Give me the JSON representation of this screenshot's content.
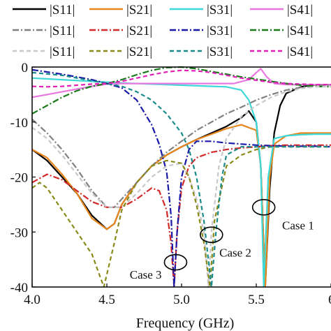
{
  "chart_data": {
    "type": "line",
    "title": "",
    "xlabel": "Frequency (GHz)",
    "ylabel": "",
    "xlim": [
      4.0,
      6.0
    ],
    "ylim": [
      -40,
      0
    ],
    "x_ticks": [
      4.0,
      4.5,
      5.0,
      5.5,
      6.0
    ],
    "x_tick_labels": [
      "4.0",
      "4.5",
      "5.0",
      "5.5",
      "6"
    ],
    "y_ticks": [
      0,
      -10,
      -20,
      -30,
      -40
    ],
    "y_tick_labels": [
      "0",
      "-10",
      "-20",
      "-30",
      "-40"
    ],
    "grid": false,
    "legend_position": "top",
    "legend_columns": 4,
    "annotations": [
      {
        "label": "Case 1",
        "ellipse_center": [
          5.55,
          -25.5
        ],
        "label_at": [
          5.78,
          -29.5
        ]
      },
      {
        "label": "Case 2",
        "ellipse_center": [
          5.2,
          -30.5
        ],
        "label_at": [
          5.36,
          -34.5
        ]
      },
      {
        "label": "Case 3",
        "ellipse_center": [
          4.96,
          -35.5
        ],
        "label_at": [
          4.76,
          -38.5
        ]
      }
    ],
    "series": [
      {
        "name": "|S11|",
        "color": "#000000",
        "dash": "solid",
        "points": [
          [
            4.0,
            -15
          ],
          [
            4.1,
            -17
          ],
          [
            4.2,
            -20
          ],
          [
            4.3,
            -23
          ],
          [
            4.4,
            -27
          ],
          [
            4.5,
            -29.5
          ],
          [
            4.55,
            -28.5
          ],
          [
            4.6,
            -25
          ],
          [
            4.7,
            -21
          ],
          [
            4.8,
            -18
          ],
          [
            4.9,
            -16
          ],
          [
            5.0,
            -14.5
          ],
          [
            5.1,
            -13.2
          ],
          [
            5.2,
            -12
          ],
          [
            5.3,
            -10.8
          ],
          [
            5.4,
            -9.2
          ],
          [
            5.45,
            -8
          ],
          [
            5.5,
            -10
          ],
          [
            5.53,
            -18
          ],
          [
            5.56,
            -40
          ],
          [
            5.59,
            -22
          ],
          [
            5.62,
            -12
          ],
          [
            5.66,
            -7
          ],
          [
            5.7,
            -4.8
          ],
          [
            5.8,
            -3.6
          ],
          [
            5.9,
            -3.2
          ],
          [
            6.0,
            -3.2
          ]
        ]
      },
      {
        "name": "|S21|",
        "color": "#e8861c",
        "dash": "solid",
        "points": [
          [
            4.0,
            -15
          ],
          [
            4.1,
            -16.5
          ],
          [
            4.2,
            -19.5
          ],
          [
            4.3,
            -23
          ],
          [
            4.4,
            -27.5
          ],
          [
            4.5,
            -29.5
          ],
          [
            4.55,
            -28.5
          ],
          [
            4.6,
            -25
          ],
          [
            4.7,
            -21
          ],
          [
            4.8,
            -18
          ],
          [
            4.9,
            -16
          ],
          [
            5.0,
            -14.5
          ],
          [
            5.1,
            -13.2
          ],
          [
            5.2,
            -12.2
          ],
          [
            5.3,
            -11.2
          ],
          [
            5.4,
            -10.5
          ],
          [
            5.5,
            -11.5
          ],
          [
            5.53,
            -18
          ],
          [
            5.56,
            -40
          ],
          [
            5.59,
            -20
          ],
          [
            5.62,
            -14
          ],
          [
            5.7,
            -12.5
          ],
          [
            5.8,
            -12
          ],
          [
            5.9,
            -12
          ],
          [
            6.0,
            -12
          ]
        ]
      },
      {
        "name": "|S31|",
        "color": "#3ed8d8",
        "dash": "solid",
        "points": [
          [
            4.0,
            -2
          ],
          [
            4.2,
            -2.3
          ],
          [
            4.4,
            -2.6
          ],
          [
            4.6,
            -2.9
          ],
          [
            4.8,
            -3.1
          ],
          [
            5.0,
            -3.3
          ],
          [
            5.2,
            -3.5
          ],
          [
            5.3,
            -3.6
          ],
          [
            5.4,
            -4.2
          ],
          [
            5.45,
            -6
          ],
          [
            5.5,
            -10
          ],
          [
            5.53,
            -18
          ],
          [
            5.55,
            -40
          ],
          [
            5.58,
            -20
          ],
          [
            5.62,
            -13
          ],
          [
            5.7,
            -12.5
          ],
          [
            5.8,
            -12.3
          ],
          [
            5.9,
            -12.2
          ],
          [
            6.0,
            -12.2
          ]
        ]
      },
      {
        "name": "|S41|",
        "color": "#e878e0",
        "dash": "solid",
        "points": [
          [
            4.0,
            -5.5
          ],
          [
            4.1,
            -5
          ],
          [
            4.2,
            -4.5
          ],
          [
            4.3,
            -4
          ],
          [
            4.4,
            -3.5
          ],
          [
            4.5,
            -3.1
          ],
          [
            4.6,
            -3
          ],
          [
            4.8,
            -3
          ],
          [
            5.0,
            -3
          ],
          [
            5.2,
            -3
          ],
          [
            5.35,
            -3
          ],
          [
            5.45,
            -2.3
          ],
          [
            5.5,
            -1
          ],
          [
            5.53,
            -0.3
          ],
          [
            5.57,
            -1.8
          ],
          [
            5.62,
            -3
          ],
          [
            5.7,
            -3.2
          ],
          [
            5.8,
            -3.2
          ],
          [
            5.9,
            -3.2
          ],
          [
            6.0,
            -3.2
          ]
        ]
      },
      {
        "name": "|S11|",
        "color": "#808080",
        "dash": "dashdot",
        "points": [
          [
            4.0,
            -9.5
          ],
          [
            4.1,
            -12
          ],
          [
            4.2,
            -15
          ],
          [
            4.3,
            -18.5
          ],
          [
            4.4,
            -22.5
          ],
          [
            4.5,
            -25.5
          ],
          [
            4.55,
            -25.5
          ],
          [
            4.6,
            -24
          ],
          [
            4.7,
            -21
          ],
          [
            4.8,
            -18
          ],
          [
            4.9,
            -15.5
          ],
          [
            5.0,
            -13.5
          ],
          [
            5.1,
            -11.5
          ],
          [
            5.2,
            -10
          ],
          [
            5.3,
            -8.5
          ],
          [
            5.4,
            -7.3
          ],
          [
            5.5,
            -6
          ],
          [
            5.6,
            -5
          ],
          [
            5.7,
            -4.2
          ],
          [
            5.8,
            -3.7
          ],
          [
            5.9,
            -3.4
          ],
          [
            6.0,
            -3.3
          ]
        ]
      },
      {
        "name": "|S21|",
        "color": "#d22a2a",
        "dash": "dashdot",
        "points": [
          [
            4.0,
            -21
          ],
          [
            4.1,
            -19.5
          ],
          [
            4.2,
            -20.5
          ],
          [
            4.3,
            -22.5
          ],
          [
            4.4,
            -24.5
          ],
          [
            4.5,
            -25.5
          ],
          [
            4.6,
            -25.5
          ],
          [
            4.7,
            -24
          ],
          [
            4.8,
            -22
          ],
          [
            4.85,
            -22.5
          ],
          [
            4.9,
            -26
          ],
          [
            4.93,
            -32
          ],
          [
            4.95,
            -40
          ],
          [
            4.97,
            -30
          ],
          [
            5.0,
            -22
          ],
          [
            5.05,
            -18
          ],
          [
            5.1,
            -16.5
          ],
          [
            5.2,
            -15.5
          ],
          [
            5.3,
            -15
          ],
          [
            5.4,
            -14.7
          ],
          [
            5.5,
            -14.5
          ],
          [
            5.6,
            -14.3
          ],
          [
            5.7,
            -14.2
          ],
          [
            5.8,
            -14.2
          ],
          [
            5.9,
            -14.2
          ],
          [
            6.0,
            -14.2
          ]
        ]
      },
      {
        "name": "|S31|",
        "color": "#1a1aa8",
        "dash": "dashdot",
        "points": [
          [
            4.0,
            -0.5
          ],
          [
            4.2,
            -1.3
          ],
          [
            4.4,
            -2.3
          ],
          [
            4.5,
            -3
          ],
          [
            4.6,
            -3.8
          ],
          [
            4.7,
            -6
          ],
          [
            4.8,
            -10.5
          ],
          [
            4.85,
            -14
          ],
          [
            4.9,
            -19
          ],
          [
            4.93,
            -27
          ],
          [
            4.95,
            -40
          ],
          [
            4.97,
            -30
          ],
          [
            5.0,
            -20
          ],
          [
            5.05,
            -15
          ],
          [
            5.1,
            -13.5
          ],
          [
            5.2,
            -13.5
          ],
          [
            5.3,
            -13.8
          ],
          [
            5.4,
            -14
          ],
          [
            5.5,
            -14.2
          ],
          [
            5.6,
            -14.3
          ],
          [
            5.7,
            -14.4
          ],
          [
            5.8,
            -14.4
          ],
          [
            5.9,
            -14.4
          ],
          [
            6.0,
            -14.5
          ]
        ]
      },
      {
        "name": "|S41|",
        "color": "#1a7a1a",
        "dash": "dashdot",
        "points": [
          [
            4.0,
            -8.5
          ],
          [
            4.1,
            -7
          ],
          [
            4.2,
            -5.5
          ],
          [
            4.3,
            -4.3
          ],
          [
            4.4,
            -3.5
          ],
          [
            4.5,
            -3
          ],
          [
            4.6,
            -2.3
          ],
          [
            4.7,
            -1.4
          ],
          [
            4.8,
            -0.6
          ],
          [
            4.9,
            -0.1
          ],
          [
            5.0,
            0
          ],
          [
            5.1,
            -0.3
          ],
          [
            5.2,
            -0.8
          ],
          [
            5.3,
            -1.3
          ],
          [
            5.4,
            -1.8
          ],
          [
            5.5,
            -2.2
          ],
          [
            5.6,
            -2.6
          ],
          [
            5.7,
            -3
          ],
          [
            5.8,
            -3.3
          ],
          [
            5.9,
            -3.5
          ],
          [
            6.0,
            -3.6
          ]
        ]
      },
      {
        "name": "|S11|",
        "color": "#c8c8c8",
        "dash": "dashed",
        "points": [
          [
            4.0,
            -11
          ],
          [
            4.1,
            -13
          ],
          [
            4.2,
            -16
          ],
          [
            4.3,
            -19.5
          ],
          [
            4.4,
            -23
          ],
          [
            4.5,
            -25.5
          ],
          [
            4.6,
            -25.5
          ],
          [
            4.7,
            -23
          ],
          [
            4.8,
            -20
          ],
          [
            4.9,
            -18
          ],
          [
            5.0,
            -17.5
          ],
          [
            5.05,
            -20
          ],
          [
            5.1,
            -24
          ],
          [
            5.15,
            -30
          ],
          [
            5.18,
            -40
          ],
          [
            5.2,
            -30
          ],
          [
            5.25,
            -18
          ],
          [
            5.3,
            -13
          ],
          [
            5.4,
            -9
          ],
          [
            5.5,
            -7
          ],
          [
            5.6,
            -5.5
          ],
          [
            5.7,
            -4.5
          ],
          [
            5.8,
            -3.9
          ],
          [
            5.9,
            -3.6
          ],
          [
            6.0,
            -3.5
          ]
        ]
      },
      {
        "name": "|S21|",
        "color": "#8a8a1a",
        "dash": "dashed",
        "points": [
          [
            4.0,
            -22
          ],
          [
            4.05,
            -21
          ],
          [
            4.1,
            -22
          ],
          [
            4.2,
            -26
          ],
          [
            4.3,
            -30
          ],
          [
            4.4,
            -34
          ],
          [
            4.48,
            -40
          ],
          [
            4.55,
            -32
          ],
          [
            4.6,
            -26
          ],
          [
            4.7,
            -21
          ],
          [
            4.8,
            -18
          ],
          [
            4.9,
            -17
          ],
          [
            5.0,
            -17.5
          ],
          [
            5.05,
            -20
          ],
          [
            5.1,
            -25
          ],
          [
            5.15,
            -32
          ],
          [
            5.19,
            -40
          ],
          [
            5.22,
            -28
          ],
          [
            5.3,
            -18
          ],
          [
            5.4,
            -16
          ],
          [
            5.5,
            -15
          ],
          [
            5.6,
            -14.5
          ],
          [
            5.7,
            -14.5
          ],
          [
            5.8,
            -14.5
          ],
          [
            5.9,
            -14.5
          ],
          [
            6.0,
            -14.5
          ]
        ]
      },
      {
        "name": "|S31|",
        "color": "#1a8a8a",
        "dash": "dashed",
        "points": [
          [
            4.0,
            -1
          ],
          [
            4.2,
            -1.5
          ],
          [
            4.4,
            -2.5
          ],
          [
            4.6,
            -3.5
          ],
          [
            4.7,
            -4.5
          ],
          [
            4.8,
            -6
          ],
          [
            4.9,
            -8.5
          ],
          [
            5.0,
            -12
          ],
          [
            5.05,
            -15
          ],
          [
            5.1,
            -20
          ],
          [
            5.15,
            -28
          ],
          [
            5.2,
            -40
          ],
          [
            5.23,
            -30
          ],
          [
            5.27,
            -20
          ],
          [
            5.3,
            -16
          ],
          [
            5.4,
            -14.5
          ],
          [
            5.5,
            -14.5
          ],
          [
            5.6,
            -14.5
          ],
          [
            5.7,
            -14.5
          ],
          [
            5.8,
            -14.5
          ],
          [
            5.9,
            -14.5
          ],
          [
            6.0,
            -14.5
          ]
        ]
      },
      {
        "name": "|S41|",
        "color": "#e020b8",
        "dash": "dashed",
        "points": [
          [
            4.0,
            -3.5
          ],
          [
            4.1,
            -3.6
          ],
          [
            4.2,
            -3.5
          ],
          [
            4.3,
            -3.3
          ],
          [
            4.4,
            -3.1
          ],
          [
            4.5,
            -3
          ],
          [
            4.6,
            -2.6
          ],
          [
            4.7,
            -2
          ],
          [
            4.8,
            -1.4
          ],
          [
            4.9,
            -0.9
          ],
          [
            5.0,
            -0.6
          ],
          [
            5.1,
            -0.7
          ],
          [
            5.2,
            -1
          ],
          [
            5.3,
            -1.5
          ],
          [
            5.4,
            -2
          ],
          [
            5.5,
            -2.4
          ],
          [
            5.6,
            -2.8
          ],
          [
            5.7,
            -3
          ],
          [
            5.8,
            -3.1
          ],
          [
            5.9,
            -3.2
          ],
          [
            6.0,
            -3.2
          ]
        ]
      }
    ]
  }
}
